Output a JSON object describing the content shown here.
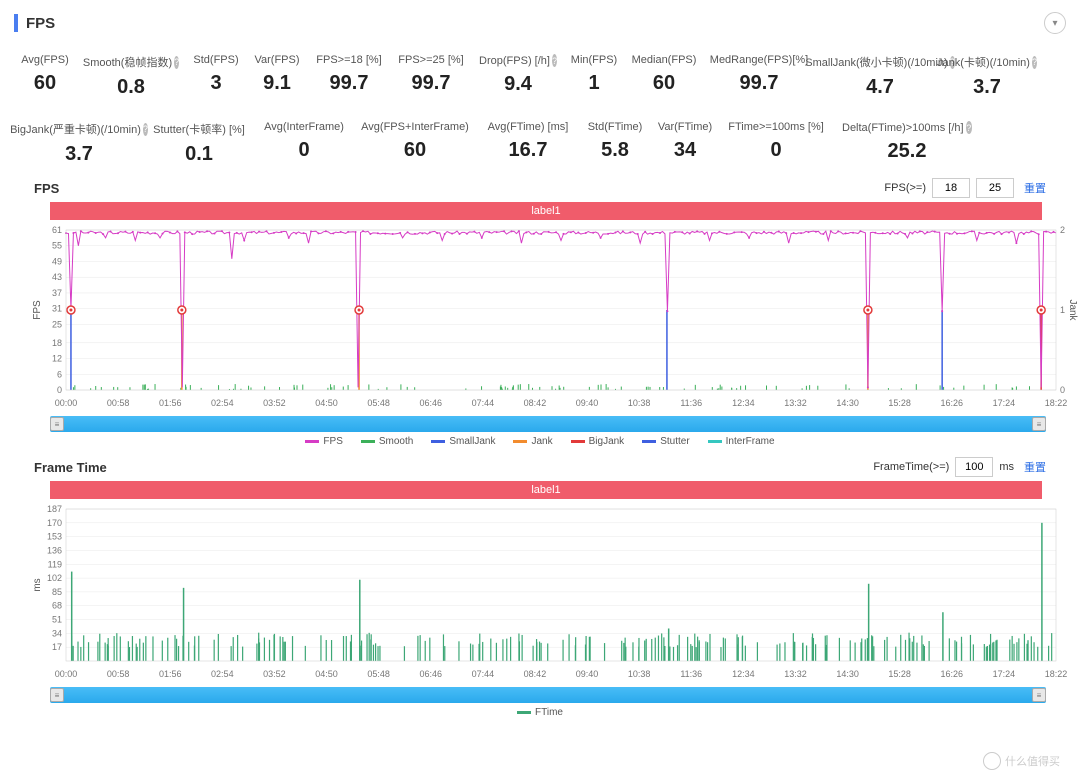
{
  "header": {
    "title": "FPS",
    "accent_color": "#4a7ef0"
  },
  "stats_row1": [
    {
      "label": "Avg(FPS)",
      "value": "60"
    },
    {
      "label": "Smooth(稳帧指数)",
      "value": "0.8",
      "help": true
    },
    {
      "label": "Std(FPS)",
      "value": "3"
    },
    {
      "label": "Var(FPS)",
      "value": "9.1"
    },
    {
      "label": "FPS>=18 [%]",
      "value": "99.7"
    },
    {
      "label": "FPS>=25 [%]",
      "value": "99.7"
    },
    {
      "label": "Drop(FPS) [/h]",
      "value": "9.4",
      "help": true
    },
    {
      "label": "Min(FPS)",
      "value": "1"
    },
    {
      "label": "Median(FPS)",
      "value": "60"
    },
    {
      "label": "MedRange(FPS)[%]",
      "value": "99.7"
    },
    {
      "label": "SmallJank(微小卡顿)(/10min)",
      "value": "4.7",
      "help": true
    },
    {
      "label": "Jank(卡顿)(/10min)",
      "value": "3.7",
      "help": true
    }
  ],
  "stats_row2": [
    {
      "label": "BigJank(严重卡顿)(/10min)",
      "value": "3.7",
      "help": true
    },
    {
      "label": "Stutter(卡顿率) [%]",
      "value": "0.1"
    },
    {
      "label": "Avg(InterFrame)",
      "value": "0"
    },
    {
      "label": "Avg(FPS+InterFrame)",
      "value": "60"
    },
    {
      "label": "Avg(FTime) [ms]",
      "value": "16.7"
    },
    {
      "label": "Std(FTime)",
      "value": "5.8"
    },
    {
      "label": "Var(FTime)",
      "value": "34"
    },
    {
      "label": "FTime>=100ms [%]",
      "value": "0"
    },
    {
      "label": "Delta(FTime)>100ms [/h]",
      "value": "25.2",
      "help": true
    }
  ],
  "fps_chart": {
    "title": "FPS",
    "label_bar": "label1",
    "controls": {
      "prefix": "FPS(>=)",
      "v1": "18",
      "v2": "25",
      "reset": "重置"
    },
    "y_left": {
      "label": "FPS",
      "ticks": [
        0,
        6,
        12,
        18,
        25,
        31,
        37,
        43,
        49,
        55,
        61
      ],
      "max": 61
    },
    "y_right": {
      "label": "Jank",
      "ticks": [
        0,
        1,
        2
      ],
      "max": 2
    },
    "x_ticks": [
      "00:00",
      "00:58",
      "01:56",
      "02:54",
      "03:52",
      "04:50",
      "05:48",
      "06:46",
      "07:44",
      "08:42",
      "09:40",
      "10:38",
      "11:36",
      "12:34",
      "13:32",
      "14:30",
      "15:28",
      "16:26",
      "17:24",
      "18:22"
    ],
    "colors": {
      "fps": "#d63cc5",
      "smooth": "#3cb05a",
      "smalljank": "#3e5fe0",
      "jank": "#f28c2e",
      "bigjank": "#e23a3a",
      "stutter": "#3e5fe0",
      "interframe": "#35c7c0",
      "grid": "#e8e8e8",
      "axis": "#777"
    },
    "fps_baseline": 60,
    "fps_dips": [
      {
        "t": 0.005,
        "v": 31
      },
      {
        "t": 0.012,
        "v": 55
      },
      {
        "t": 0.04,
        "v": 58
      },
      {
        "t": 0.07,
        "v": 57
      },
      {
        "t": 0.095,
        "v": 58
      },
      {
        "t": 0.117,
        "v": 1
      },
      {
        "t": 0.168,
        "v": 50
      },
      {
        "t": 0.18,
        "v": 57
      },
      {
        "t": 0.225,
        "v": 58
      },
      {
        "t": 0.245,
        "v": 56
      },
      {
        "t": 0.296,
        "v": 1
      },
      {
        "t": 0.34,
        "v": 58
      },
      {
        "t": 0.38,
        "v": 57
      },
      {
        "t": 0.42,
        "v": 58
      },
      {
        "t": 0.46,
        "v": 56
      },
      {
        "t": 0.5,
        "v": 57
      },
      {
        "t": 0.54,
        "v": 58
      },
      {
        "t": 0.58,
        "v": 56
      },
      {
        "t": 0.607,
        "v": 30
      },
      {
        "t": 0.65,
        "v": 57
      },
      {
        "t": 0.69,
        "v": 58
      },
      {
        "t": 0.73,
        "v": 56
      },
      {
        "t": 0.77,
        "v": 57
      },
      {
        "t": 0.81,
        "v": 1
      },
      {
        "t": 0.85,
        "v": 58
      },
      {
        "t": 0.885,
        "v": 30
      },
      {
        "t": 0.92,
        "v": 57
      },
      {
        "t": 0.96,
        "v": 56
      },
      {
        "t": 0.985,
        "v": 1
      }
    ],
    "jank_spikes": [
      {
        "t": 0.005,
        "v": 1,
        "c": "#3e5fe0"
      },
      {
        "t": 0.117,
        "v": 1,
        "c": "#f28c2e"
      },
      {
        "t": 0.296,
        "v": 1,
        "c": "#f28c2e"
      },
      {
        "t": 0.607,
        "v": 1,
        "c": "#3e5fe0"
      },
      {
        "t": 0.81,
        "v": 1,
        "c": "#f28c2e"
      },
      {
        "t": 0.885,
        "v": 1,
        "c": "#3e5fe0"
      },
      {
        "t": 0.985,
        "v": 1,
        "c": "#e23a3a"
      }
    ],
    "jank_markers": [
      0.005,
      0.117,
      0.296,
      0.81,
      0.985
    ],
    "smooth_noise_density": 110,
    "legend": [
      {
        "name": "FPS",
        "color": "#d63cc5"
      },
      {
        "name": "Smooth",
        "color": "#3cb05a"
      },
      {
        "name": "SmallJank",
        "color": "#3e5fe0"
      },
      {
        "name": "Jank",
        "color": "#f28c2e"
      },
      {
        "name": "BigJank",
        "color": "#e23a3a"
      },
      {
        "name": "Stutter",
        "color": "#3e5fe0"
      },
      {
        "name": "InterFrame",
        "color": "#35c7c0"
      }
    ]
  },
  "ft_chart": {
    "title": "Frame Time",
    "label_bar": "label1",
    "controls": {
      "prefix": "FrameTime(>=)",
      "v1": "100",
      "unit": "ms",
      "reset": "重置"
    },
    "y_left": {
      "label": "ms",
      "ticks": [
        17,
        34,
        51,
        68,
        85,
        102,
        119,
        136,
        153,
        170,
        187
      ],
      "max": 187
    },
    "x_ticks": [
      "00:00",
      "00:58",
      "01:56",
      "02:54",
      "03:52",
      "04:50",
      "05:48",
      "06:46",
      "07:44",
      "08:42",
      "09:40",
      "10:38",
      "11:36",
      "12:34",
      "13:32",
      "14:30",
      "15:28",
      "16:26",
      "17:24",
      "18:22"
    ],
    "color": "#3da776",
    "baseline": 17,
    "big_spikes": [
      {
        "t": 0.005,
        "v": 110
      },
      {
        "t": 0.118,
        "v": 90
      },
      {
        "t": 0.296,
        "v": 100
      },
      {
        "t": 0.608,
        "v": 40
      },
      {
        "t": 0.81,
        "v": 95
      },
      {
        "t": 0.885,
        "v": 60
      },
      {
        "t": 0.985,
        "v": 170
      }
    ],
    "noise_density": 220,
    "legend": [
      {
        "name": "FTime",
        "color": "#3da776"
      }
    ]
  },
  "watermark": "什么值得买"
}
